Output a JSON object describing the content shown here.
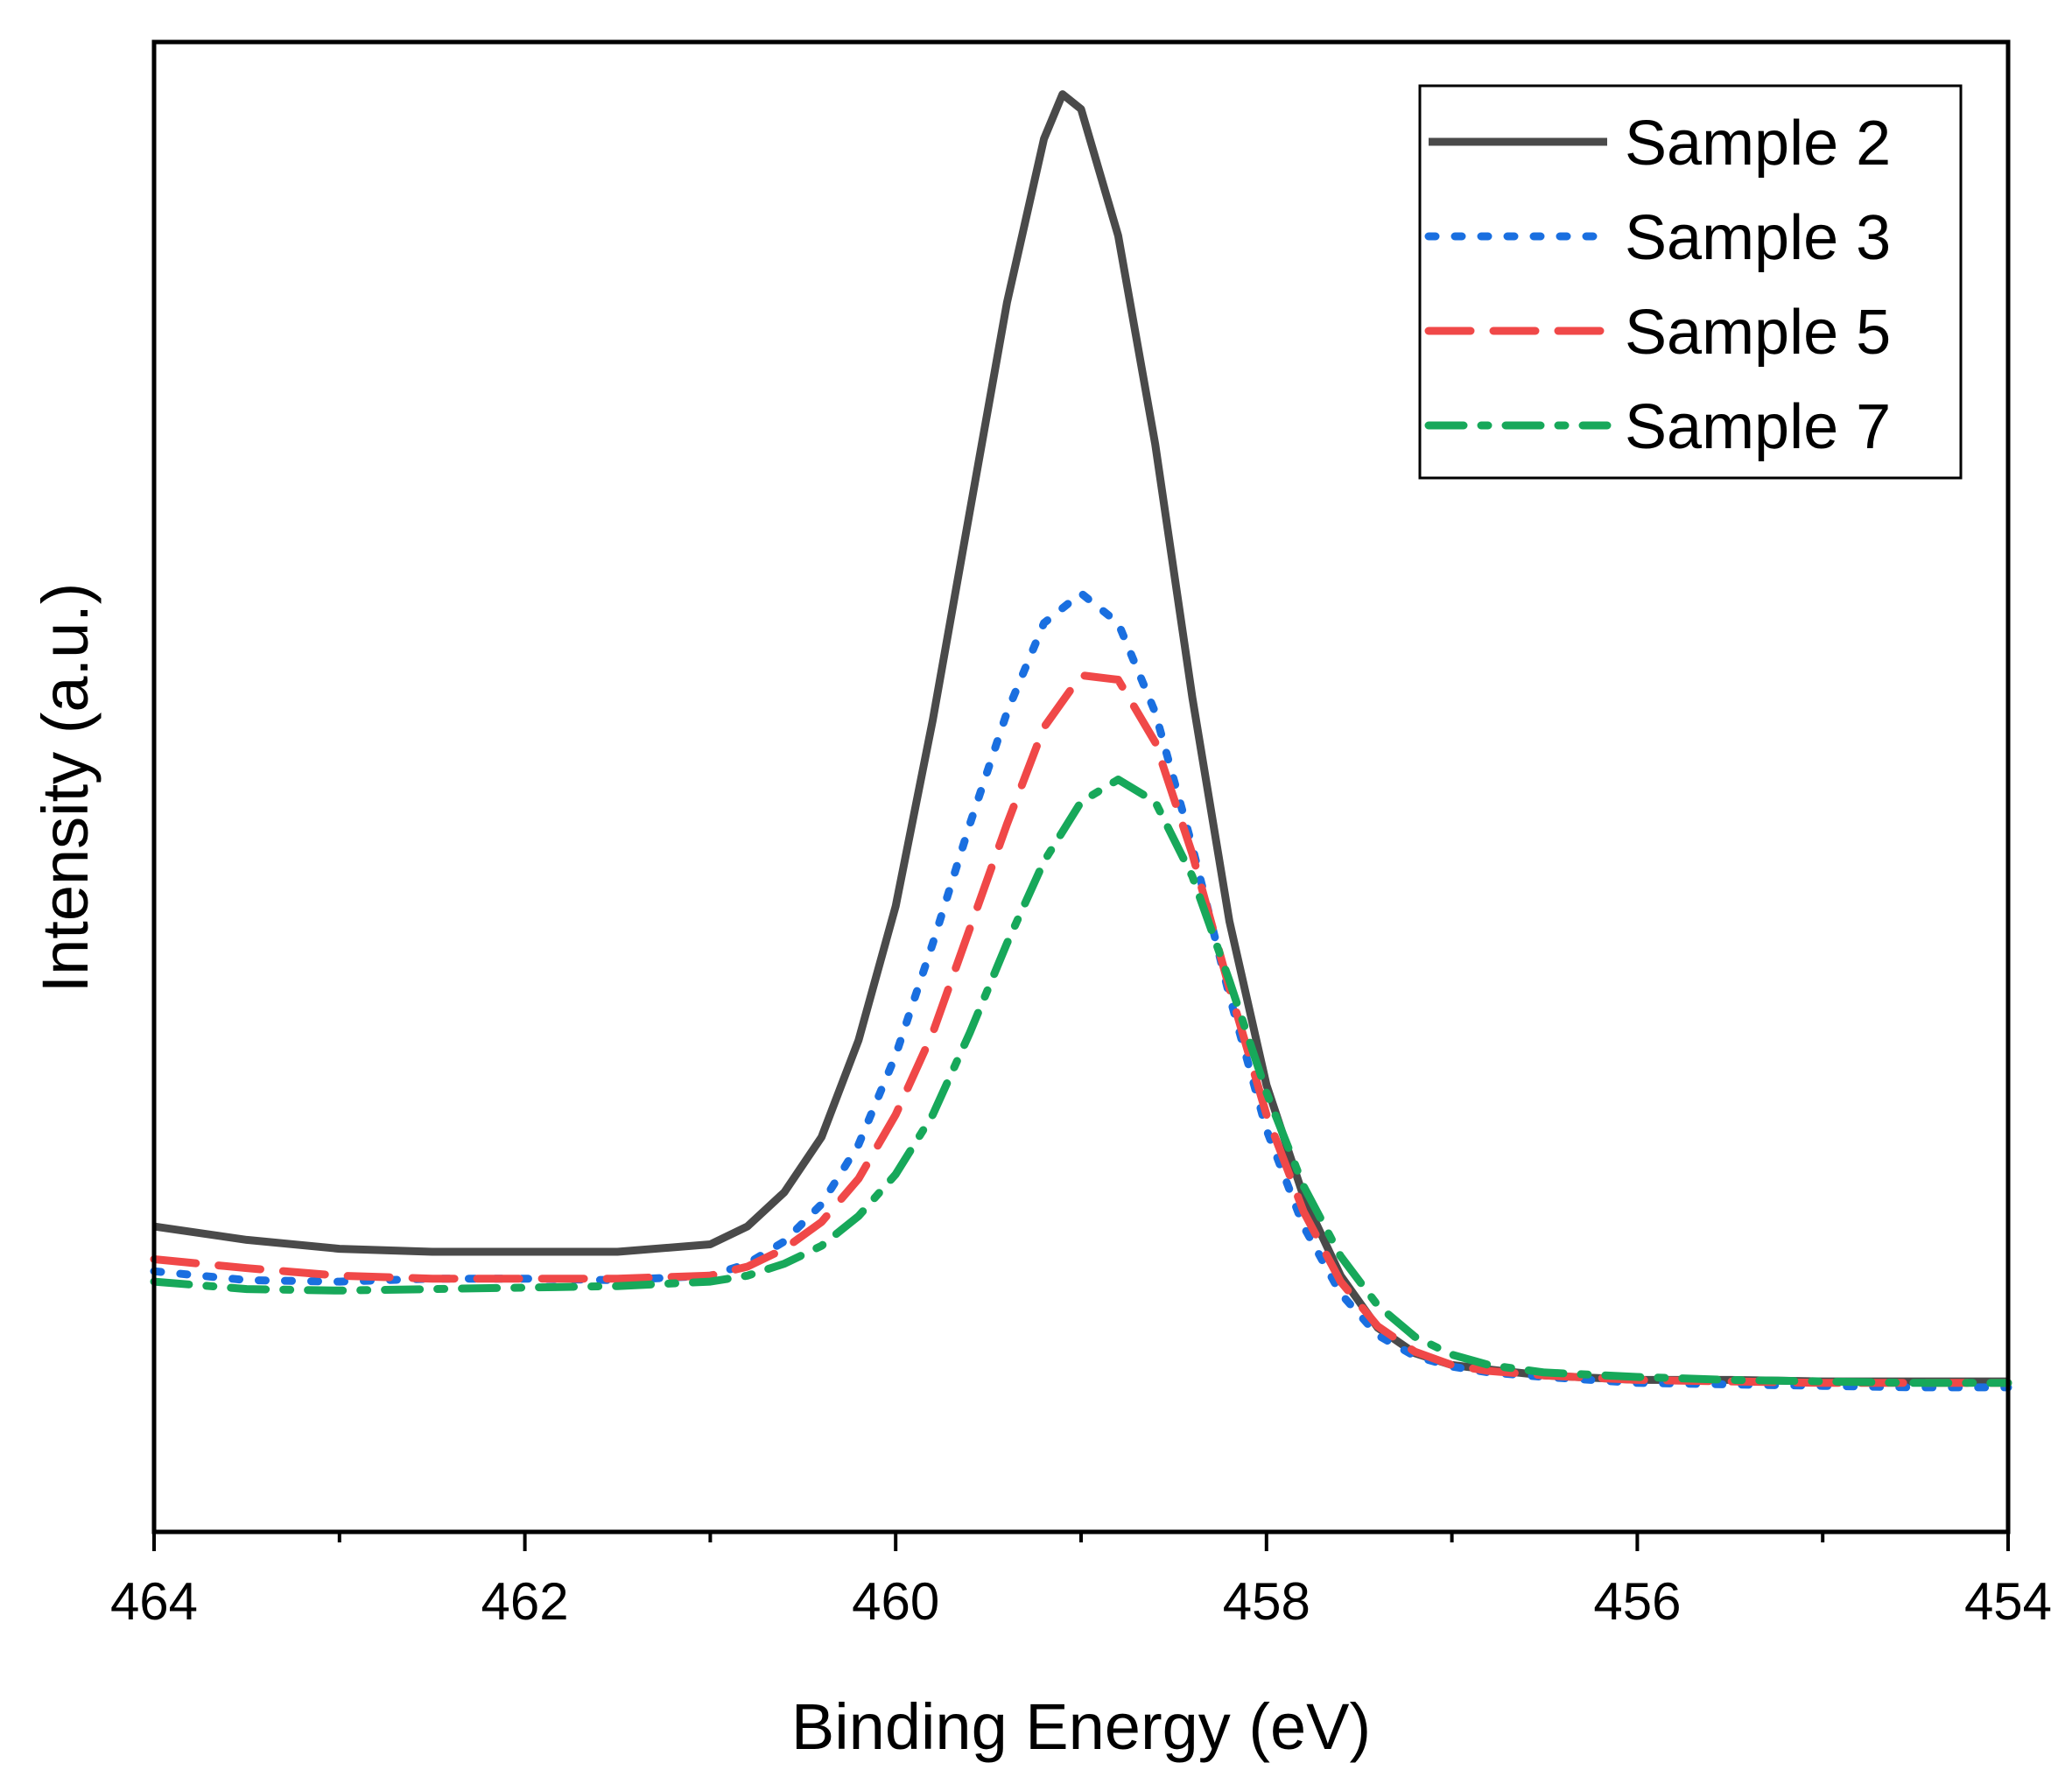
{
  "chart_data": {
    "type": "line",
    "title": "",
    "xlabel": "Binding Energy (eV)",
    "ylabel": "Intensity (a.u.)",
    "xlim": [
      464,
      454
    ],
    "x_reversed": true,
    "ylim": [
      0,
      1
    ],
    "y_ticks_labeled": false,
    "x_ticks": [
      "464",
      "462",
      "460",
      "458",
      "456",
      "454"
    ],
    "x_tick_values": [
      464,
      462,
      460,
      458,
      456,
      454
    ],
    "x_minor_ticks": [
      463,
      461,
      459,
      457,
      455
    ],
    "grid": false,
    "legend_position": "top-right",
    "series": [
      {
        "name": "Sample 2",
        "color": "#4a4a4a",
        "dash": "solid",
        "x": [
          464,
          463.5,
          463,
          462.5,
          462,
          461.5,
          461,
          460.8,
          460.6,
          460.4,
          460.2,
          460,
          459.8,
          459.6,
          459.4,
          459.2,
          459.1,
          459,
          458.8,
          458.6,
          458.4,
          458.2,
          458,
          457.8,
          457.6,
          457.4,
          457.2,
          457,
          456.8,
          456.5,
          456,
          455.5,
          455,
          454.5,
          454
        ],
        "y": [
          0.205,
          0.196,
          0.19,
          0.188,
          0.188,
          0.188,
          0.193,
          0.205,
          0.228,
          0.265,
          0.33,
          0.42,
          0.545,
          0.685,
          0.825,
          0.935,
          0.965,
          0.955,
          0.87,
          0.73,
          0.56,
          0.41,
          0.3,
          0.225,
          0.172,
          0.137,
          0.12,
          0.112,
          0.109,
          0.105,
          0.102,
          0.102,
          0.101,
          0.101,
          0.101
        ]
      },
      {
        "name": "Sample 3",
        "color": "#1a6fe0",
        "dash": "dot",
        "x": [
          464,
          463.5,
          463,
          462.5,
          462,
          461.5,
          461,
          460.8,
          460.6,
          460.4,
          460.2,
          460,
          459.8,
          459.6,
          459.4,
          459.2,
          459,
          458.8,
          458.6,
          458.4,
          458.2,
          458,
          457.8,
          457.6,
          457.4,
          457.2,
          457,
          456.8,
          456.5,
          456,
          455.5,
          455,
          454.5,
          454
        ],
        "y": [
          0.175,
          0.169,
          0.168,
          0.17,
          0.17,
          0.169,
          0.172,
          0.18,
          0.195,
          0.22,
          0.26,
          0.32,
          0.395,
          0.475,
          0.55,
          0.61,
          0.63,
          0.61,
          0.55,
          0.46,
          0.36,
          0.27,
          0.205,
          0.16,
          0.132,
          0.118,
          0.111,
          0.107,
          0.104,
          0.1,
          0.099,
          0.098,
          0.097,
          0.097
        ]
      },
      {
        "name": "Sample 5",
        "color": "#f04848",
        "dash": "dash",
        "x": [
          464,
          463.5,
          463,
          462.5,
          462,
          461.5,
          461,
          460.8,
          460.6,
          460.4,
          460.2,
          460,
          459.8,
          459.6,
          459.4,
          459.2,
          459,
          458.8,
          458.6,
          458.4,
          458.2,
          458,
          457.8,
          457.6,
          457.4,
          457.2,
          457,
          456.8,
          456.5,
          456,
          455.5,
          455,
          454.5,
          454
        ],
        "y": [
          0.183,
          0.177,
          0.172,
          0.17,
          0.17,
          0.17,
          0.172,
          0.178,
          0.19,
          0.208,
          0.237,
          0.28,
          0.335,
          0.405,
          0.475,
          0.54,
          0.575,
          0.572,
          0.53,
          0.455,
          0.365,
          0.28,
          0.215,
          0.168,
          0.138,
          0.121,
          0.112,
          0.108,
          0.105,
          0.102,
          0.101,
          0.1,
          0.1,
          0.1
        ]
      },
      {
        "name": "Sample 7",
        "color": "#17a85a",
        "dash": "dashdot",
        "x": [
          464,
          463.5,
          463,
          462.5,
          462,
          461.5,
          461,
          460.8,
          460.6,
          460.4,
          460.2,
          460,
          459.8,
          459.6,
          459.4,
          459.2,
          459,
          458.8,
          458.6,
          458.4,
          458.2,
          458,
          457.8,
          457.6,
          457.4,
          457.2,
          457,
          456.8,
          456.5,
          456,
          455.5,
          455,
          454.5,
          454
        ],
        "y": [
          0.168,
          0.163,
          0.162,
          0.163,
          0.164,
          0.165,
          0.168,
          0.172,
          0.18,
          0.192,
          0.212,
          0.24,
          0.28,
          0.335,
          0.395,
          0.45,
          0.49,
          0.505,
          0.49,
          0.44,
          0.37,
          0.295,
          0.232,
          0.185,
          0.152,
          0.131,
          0.119,
          0.112,
          0.107,
          0.104,
          0.102,
          0.101,
          0.1,
          0.1
        ]
      }
    ]
  }
}
